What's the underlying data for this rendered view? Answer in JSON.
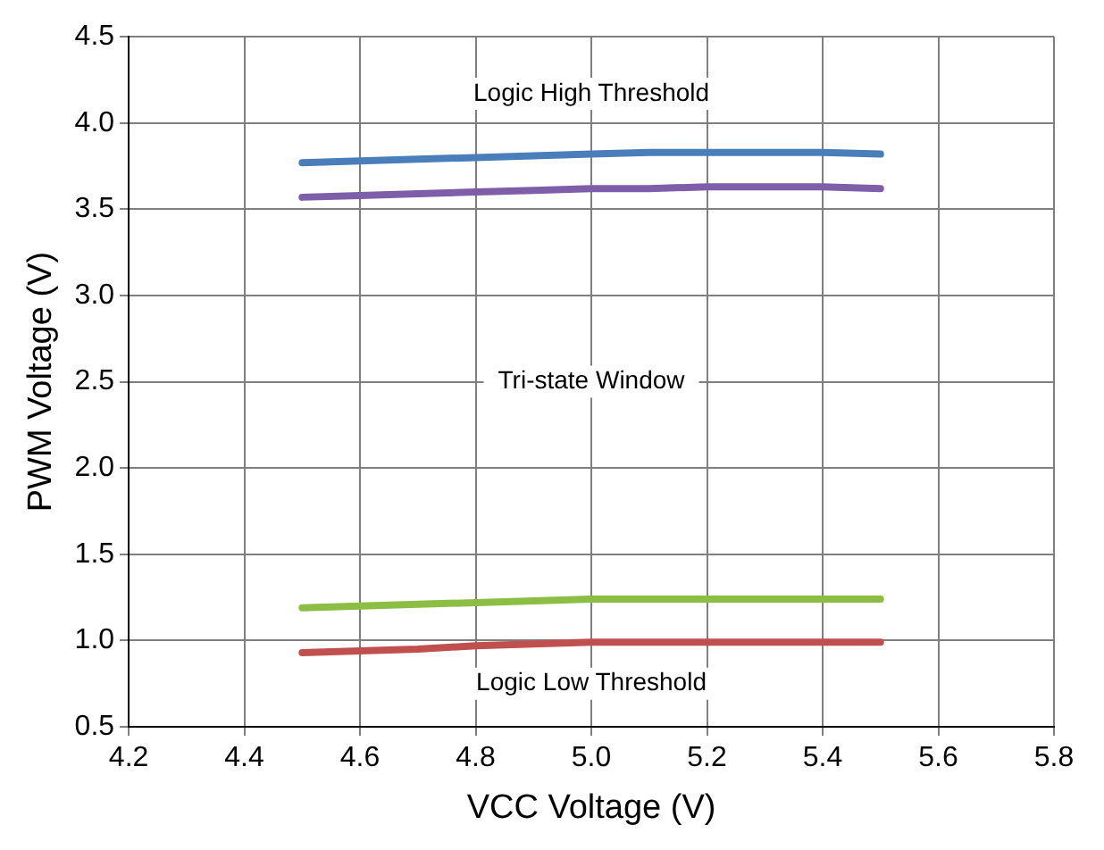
{
  "chart_data": {
    "type": "line",
    "xlabel": "VCC Voltage (V)",
    "ylabel": "PWM Voltage (V)",
    "x": [
      4.5,
      4.6,
      4.7,
      4.8,
      4.9,
      5.0,
      5.1,
      5.2,
      5.3,
      5.4,
      5.5
    ],
    "series": [
      {
        "color": "#4a7ebb",
        "values": [
          3.77,
          3.78,
          3.79,
          3.8,
          3.81,
          3.82,
          3.83,
          3.83,
          3.83,
          3.83,
          3.82
        ]
      },
      {
        "color": "#7e5ea8",
        "values": [
          3.57,
          3.58,
          3.59,
          3.6,
          3.61,
          3.62,
          3.62,
          3.63,
          3.63,
          3.63,
          3.62
        ]
      },
      {
        "color": "#8cbd45",
        "values": [
          1.19,
          1.2,
          1.21,
          1.22,
          1.23,
          1.24,
          1.24,
          1.24,
          1.24,
          1.24,
          1.24
        ]
      },
      {
        "color": "#c0504d",
        "values": [
          0.93,
          0.94,
          0.95,
          0.97,
          0.98,
          0.99,
          0.99,
          0.99,
          0.99,
          0.99,
          0.99
        ]
      }
    ],
    "xlim": [
      4.2,
      5.8
    ],
    "xticks": [
      4.2,
      4.4,
      4.6,
      4.8,
      {
        "value": 5,
        "label": "5.0"
      },
      5.2,
      5.4,
      5.6,
      5.8
    ],
    "ylim": [
      0.5,
      4.5
    ],
    "yticks": [
      0.5,
      {
        "value": 1,
        "label": "1.0"
      },
      1.5,
      {
        "value": 2,
        "label": "2.0"
      },
      2.5,
      {
        "value": 3,
        "label": "3.0"
      },
      3.5,
      {
        "value": 4,
        "label": "4.0"
      },
      4.5
    ],
    "annotations": [
      "Logic High Threshold",
      "Tri-state Window",
      "Logic Low Threshold"
    ],
    "grid": true,
    "legend": false,
    "marker": "none",
    "line_style": "solid"
  }
}
